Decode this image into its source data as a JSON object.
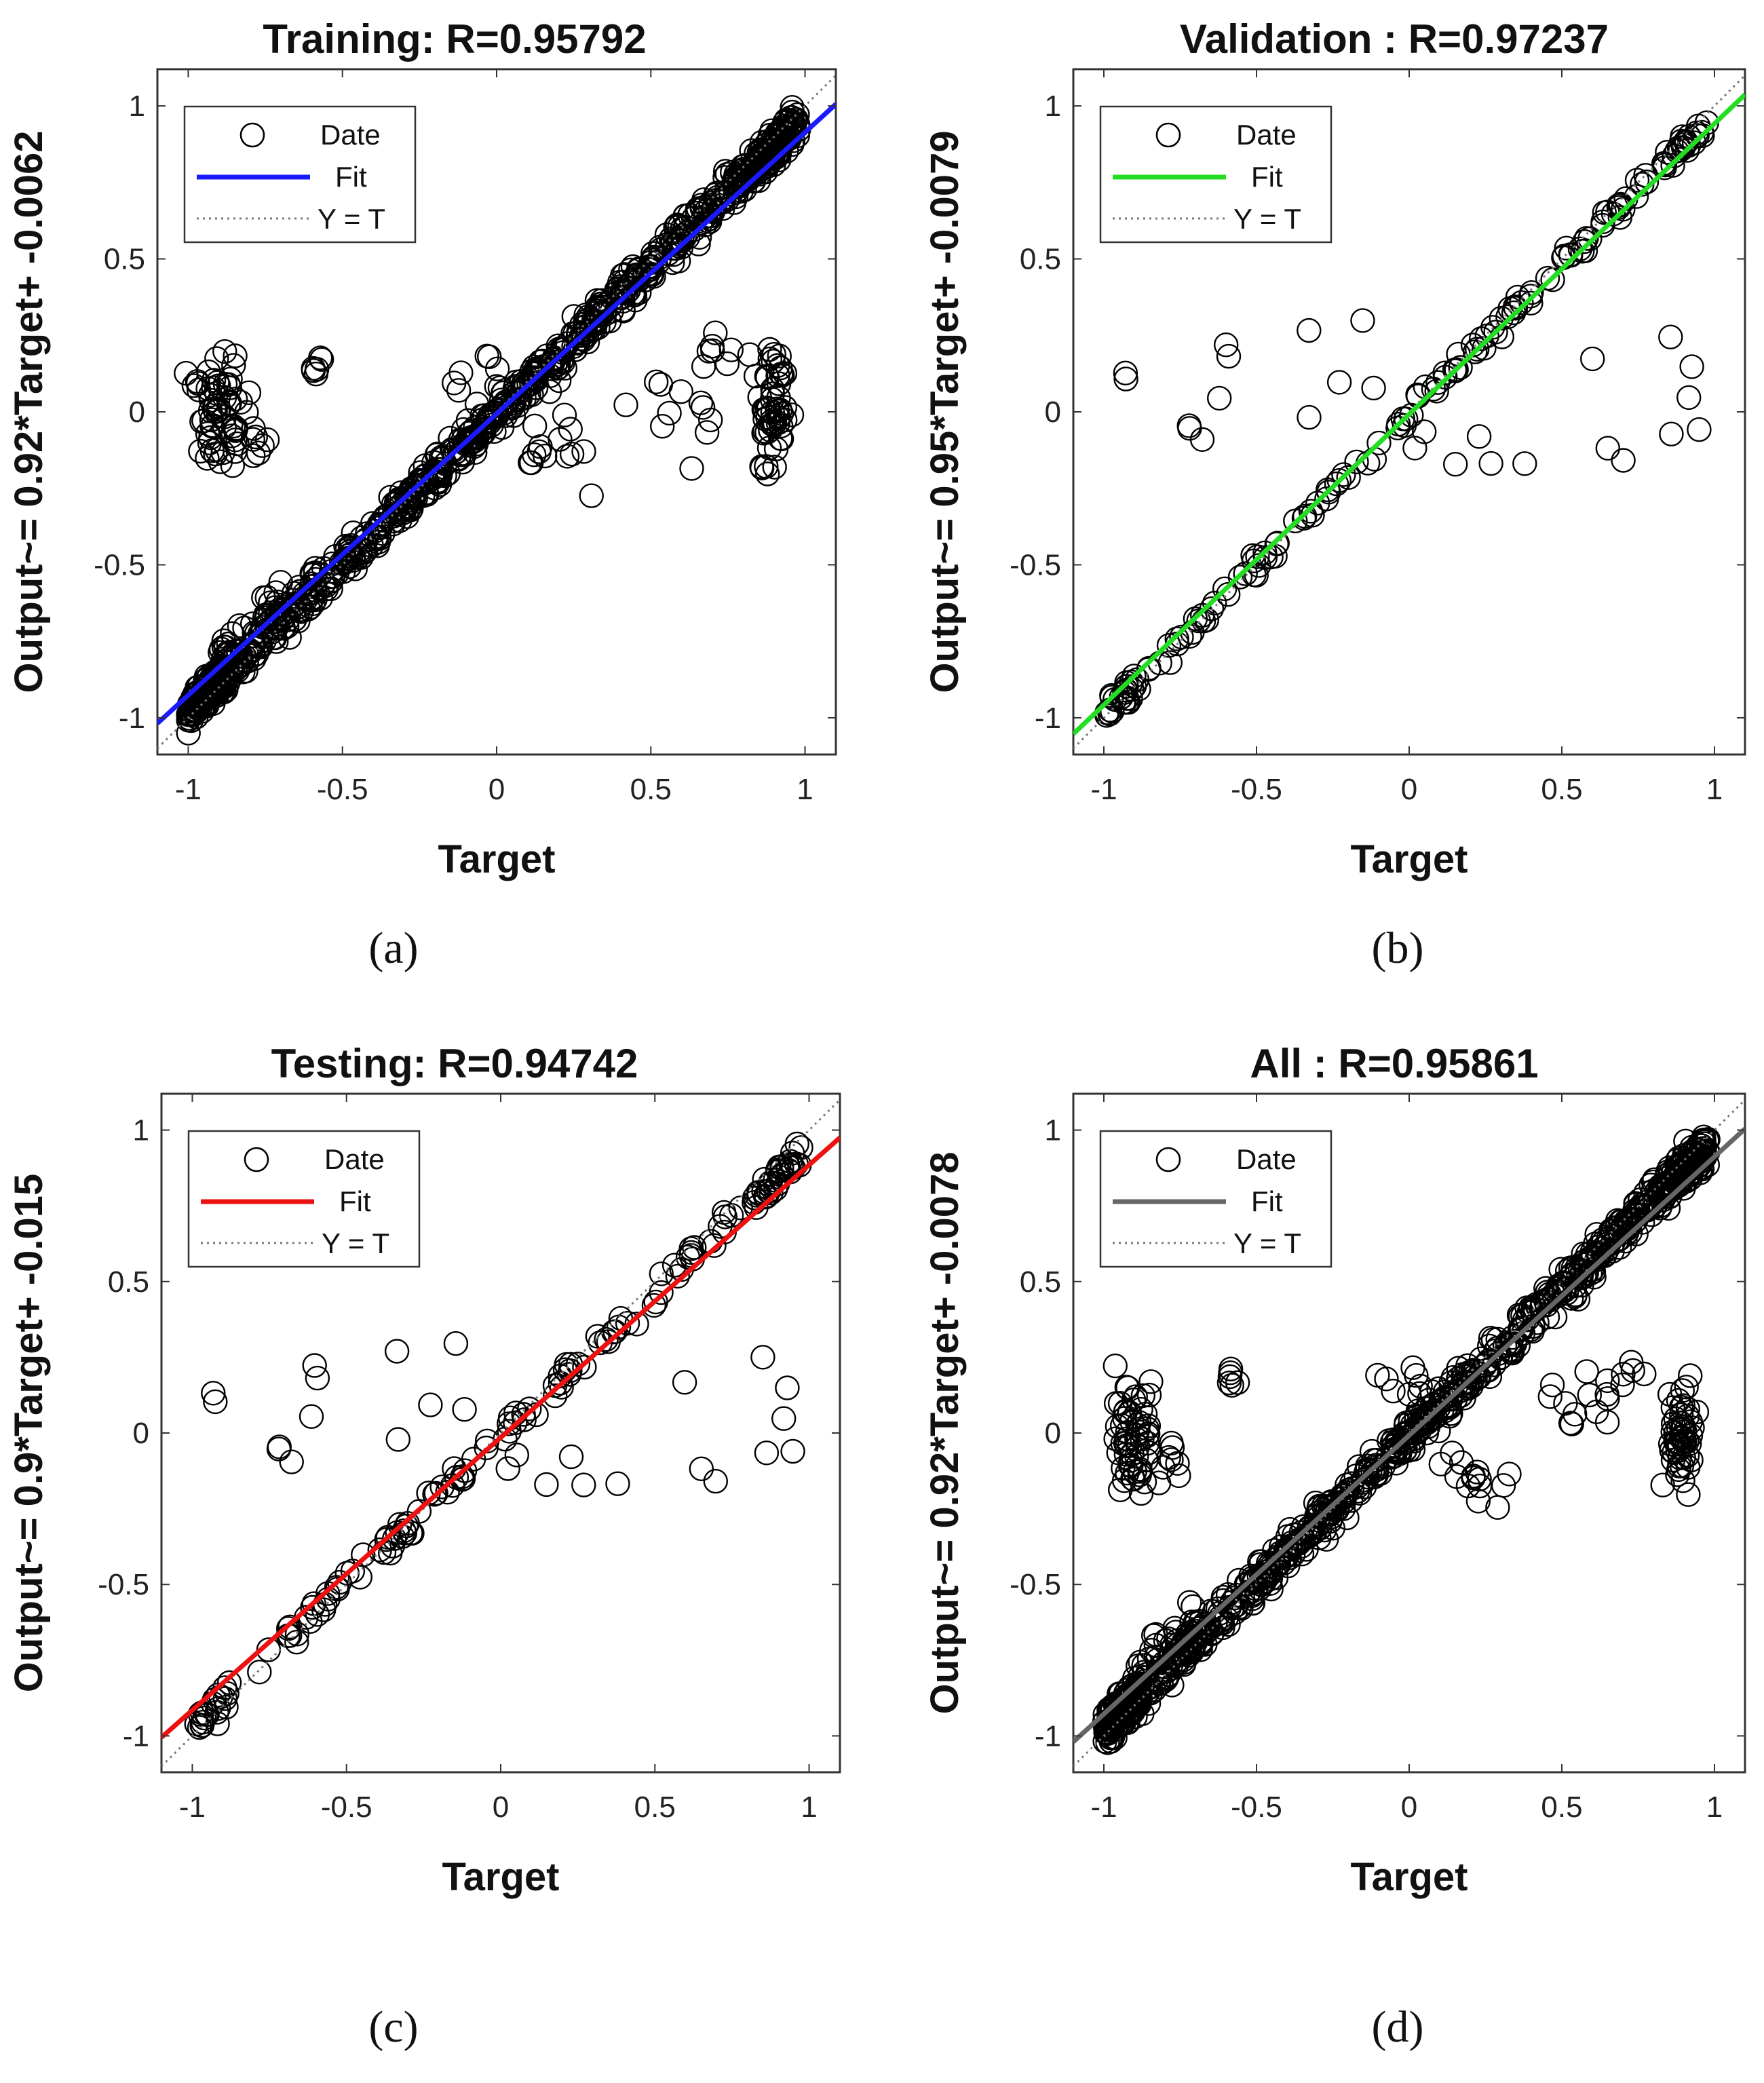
{
  "chart_data": [
    {
      "type": "scatter",
      "title": "Training: R=0.95792",
      "xlabel": "Target",
      "ylabel": "Output~= 0.92*Target+ -0.0062",
      "xlim": [
        -1.1,
        1.1
      ],
      "ylim": [
        -1.12,
        1.12
      ],
      "x_ticks": [
        "-1",
        "-0.5",
        "0",
        "0.5",
        "1"
      ],
      "y_ticks": [
        "-1",
        "-0.5",
        "0",
        "0.5",
        "1"
      ],
      "fit": {
        "slope": 0.92,
        "intercept": -0.0062,
        "color": "#1a1aff"
      },
      "legend": {
        "position": "top-left",
        "entries": [
          "Date",
          "Fit",
          "Y = T"
        ]
      },
      "grid": false,
      "panel_label": "(a)",
      "cloud": {
        "density": "dense",
        "spread": 0.045,
        "outliers": "many"
      }
    },
    {
      "type": "scatter",
      "title": "Validation : R=0.97237",
      "xlabel": "Target",
      "ylabel": "Output~= 0.95*Target+ -0.0079",
      "xlim": [
        -1.1,
        1.1
      ],
      "ylim": [
        -1.12,
        1.12
      ],
      "x_ticks": [
        "-1",
        "-0.5",
        "0",
        "0.5",
        "1"
      ],
      "y_ticks": [
        "-1",
        "-0.5",
        "0",
        "0.5",
        "1"
      ],
      "fit": {
        "slope": 0.95,
        "intercept": -0.0079,
        "color": "#22dd22"
      },
      "legend": {
        "position": "top-left",
        "entries": [
          "Date",
          "Fit",
          "Y = T"
        ]
      },
      "grid": false,
      "panel_label": "(b)",
      "cloud": {
        "density": "sparse",
        "spread": 0.03,
        "outliers": "few"
      }
    },
    {
      "type": "scatter",
      "title": "Testing: R=0.94742",
      "xlabel": "Target",
      "ylabel": "Output~= 0.9*Target+ -0.015",
      "xlim": [
        -1.1,
        1.1
      ],
      "ylim": [
        -1.12,
        1.12
      ],
      "x_ticks": [
        "-1",
        "-0.5",
        "0",
        "0.5",
        "1"
      ],
      "y_ticks": [
        "-1",
        "-0.5",
        "0",
        "0.5",
        "1"
      ],
      "fit": {
        "slope": 0.9,
        "intercept": -0.015,
        "color": "#ee1111"
      },
      "legend": {
        "position": "top-left",
        "entries": [
          "Date",
          "Fit",
          "Y = T"
        ]
      },
      "grid": false,
      "panel_label": "(c)",
      "cloud": {
        "density": "sparse",
        "spread": 0.035,
        "outliers": "few"
      }
    },
    {
      "type": "scatter",
      "title": "All   : R=0.95861",
      "xlabel": "Target",
      "ylabel": "Output~= 0.92*Target+ -0.0078",
      "xlim": [
        -1.1,
        1.1
      ],
      "ylim": [
        -1.12,
        1.12
      ],
      "x_ticks": [
        "-1",
        "-0.5",
        "0",
        "0.5",
        "1"
      ],
      "y_ticks": [
        "-1",
        "-0.5",
        "0",
        "0.5",
        "1"
      ],
      "fit": {
        "slope": 0.92,
        "intercept": -0.0078,
        "color": "#666666"
      },
      "legend": {
        "position": "top-left",
        "entries": [
          "Date",
          "Fit",
          "Y = T"
        ]
      },
      "grid": false,
      "panel_label": "(d)",
      "cloud": {
        "density": "dense",
        "spread": 0.045,
        "outliers": "many"
      }
    }
  ]
}
